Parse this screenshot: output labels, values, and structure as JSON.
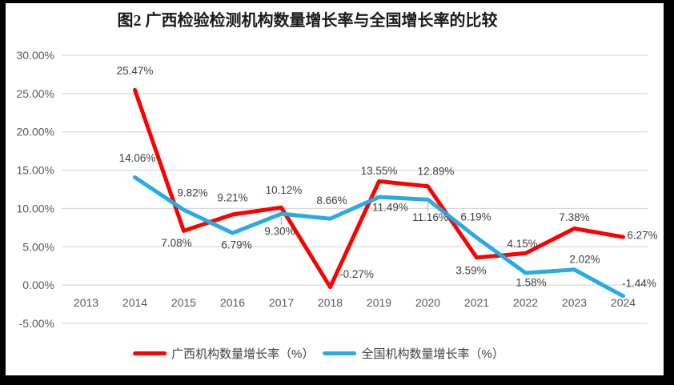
{
  "title": "图2 广西检验检测机构数量增长率与全国增长率的比较",
  "chart_data": {
    "type": "line",
    "title": "图2 广西检验检测机构数量增长率与全国增长率的比较",
    "categories": [
      "2013",
      "2014",
      "2015",
      "2016",
      "2017",
      "2018",
      "2019",
      "2020",
      "2021",
      "2022",
      "2023",
      "2024"
    ],
    "series": [
      {
        "name": "广西机构数量增长率（%）",
        "color": "#FE0000",
        "values": [
          null,
          25.47,
          7.08,
          9.21,
          10.12,
          -0.27,
          13.55,
          12.89,
          3.59,
          4.15,
          7.38,
          6.27
        ]
      },
      {
        "name": "全国机构数量增长率（%）",
        "color": "#29ABE2",
        "values": [
          null,
          14.06,
          9.82,
          6.79,
          9.3,
          8.66,
          11.49,
          11.16,
          6.19,
          1.58,
          2.02,
          -1.44
        ]
      }
    ],
    "xlabel": "",
    "ylabel": "",
    "ylim": [
      -5,
      30
    ],
    "ytick_step": 5,
    "ytick_labels": [
      "30.00%",
      "25.00%",
      "20.00%",
      "15.00%",
      "10.00%",
      "5.00%",
      "0.00%",
      "-5.00%"
    ],
    "grid": true,
    "data_labels": true,
    "legend_position": "bottom"
  },
  "colors": {
    "guangxi_line": "#FE0000",
    "national_line": "#29ABE2",
    "gridline": "#D9D9D9",
    "axis_text": "#595959",
    "data_label_text": "#404040",
    "frame_border": "#000000",
    "background": "#FFFFFF"
  }
}
